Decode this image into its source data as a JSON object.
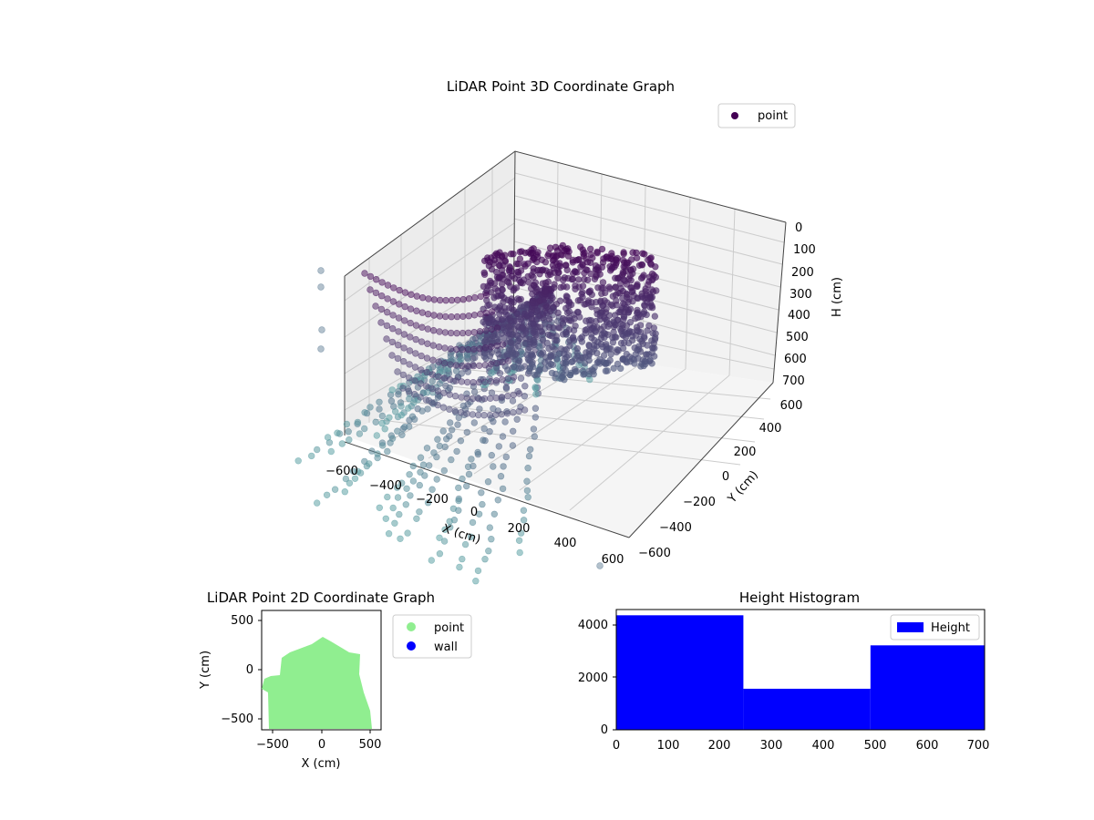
{
  "chart_data": [
    {
      "type": "scatter3d",
      "title": "LiDAR Point 3D Coordinate Graph",
      "xlabel": "X (cm)",
      "ylabel": "Y (cm)",
      "zlabel": "H (cm)",
      "xlim": [
        -600,
        600
      ],
      "ylim": [
        -600,
        600
      ],
      "zlim": [
        700,
        0
      ],
      "x_ticks": [
        "−600",
        "−400",
        "−200",
        "0",
        "200",
        "400",
        "600"
      ],
      "y_ticks": [
        "−600",
        "−400",
        "−200",
        "0",
        "200",
        "400",
        "600"
      ],
      "z_ticks": [
        "0",
        "100",
        "200",
        "300",
        "400",
        "500",
        "600",
        "700"
      ],
      "grid": true,
      "legend": {
        "position": "top-right",
        "entries": [
          "point"
        ]
      },
      "colors": {
        "high": "#440154",
        "low": "#5fa8a8"
      },
      "series": [
        {
          "name": "point",
          "note_values": "dense point cloud, color by height (viridis)"
        }
      ]
    },
    {
      "type": "scatter",
      "title": "LiDAR Point 2D Coordinate Graph",
      "xlabel": "X (cm)",
      "ylabel": "Y (cm)",
      "xlim": [
        -600,
        600
      ],
      "ylim": [
        -600,
        600
      ],
      "x_ticks": [
        "−500",
        "0",
        "500"
      ],
      "y_ticks": [
        "500",
        "0",
        "−500"
      ],
      "legend": {
        "position": "outside-right",
        "entries": [
          "point",
          "wall"
        ]
      },
      "series": [
        {
          "name": "point",
          "color": "#90ee90"
        },
        {
          "name": "wall",
          "color": "#0000ff"
        }
      ]
    },
    {
      "type": "bar",
      "title": "Height Histogram",
      "x_ticks": [
        "0",
        "100",
        "200",
        "300",
        "400",
        "500",
        "600",
        "700"
      ],
      "y_ticks": [
        "0",
        "2000",
        "4000"
      ],
      "xlim": [
        0,
        710
      ],
      "ylim": [
        0,
        4600
      ],
      "bins": [
        {
          "start": 0,
          "end": 245,
          "count": 4380
        },
        {
          "start": 245,
          "end": 490,
          "count": 1570
        },
        {
          "start": 490,
          "end": 710,
          "count": 3230
        }
      ],
      "legend": {
        "position": "top-right",
        "entries": [
          "Height"
        ]
      },
      "color": "#0000ff",
      "series": [
        {
          "name": "Height"
        }
      ]
    }
  ]
}
